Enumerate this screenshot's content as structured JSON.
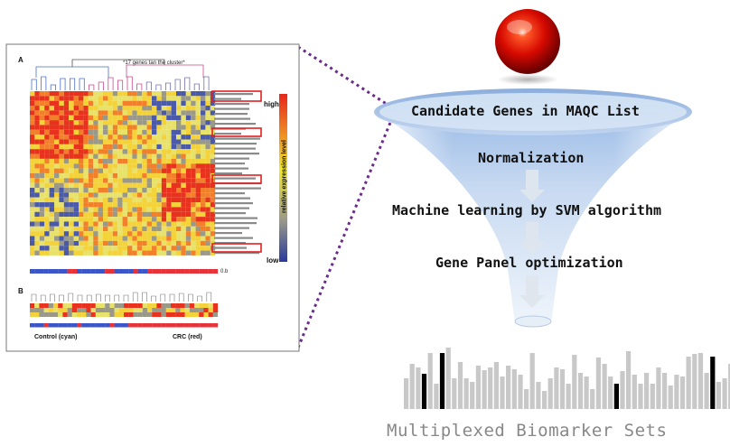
{
  "heatmap_panel": {
    "panel_a_label": "A",
    "panel_b_label": "B",
    "dendrogram_title": "*17 genes tan the cluster*",
    "scale_high": "high",
    "scale_low": "low",
    "scale_label": "relative expression level",
    "control_label": "Control (cyan)",
    "crc_label": "CRC (red)",
    "bar_end_label": "0.b"
  },
  "funnel": {
    "steps": [
      "Candidate Genes in MAQC List",
      "Normalization",
      "Machine learning by SVM algorithm",
      "Gene Panel optimization"
    ]
  },
  "output": {
    "caption": "Multiplexed Biomarker Sets"
  },
  "colors": {
    "connector": "#6b2a8c",
    "bar_gray": "#c8c8c8",
    "bar_black": "#000000",
    "sphere": "#d80000",
    "funnel": "#a9c4e6"
  }
}
